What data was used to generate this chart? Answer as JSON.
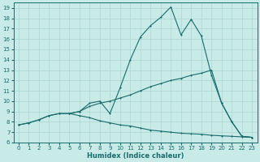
{
  "xlabel": "Humidex (Indice chaleur)",
  "bg_color": "#c8ebe8",
  "line_color": "#1a6b6b",
  "grid_color": "#b0d8d4",
  "xlim": [
    -0.5,
    23.5
  ],
  "ylim": [
    6,
    19.5
  ],
  "xticks": [
    0,
    1,
    2,
    3,
    4,
    5,
    6,
    7,
    8,
    9,
    10,
    11,
    12,
    13,
    14,
    15,
    16,
    17,
    18,
    19,
    20,
    21,
    22,
    23
  ],
  "yticks": [
    6,
    7,
    8,
    9,
    10,
    11,
    12,
    13,
    14,
    15,
    16,
    17,
    18,
    19
  ],
  "line1_x": [
    0,
    1,
    2,
    3,
    4,
    5,
    6,
    7,
    8,
    9,
    10,
    11,
    12,
    13,
    14,
    15,
    16,
    17,
    18,
    19,
    20,
    21,
    22,
    23
  ],
  "line1_y": [
    7.7,
    7.9,
    8.2,
    8.6,
    8.8,
    8.8,
    8.6,
    8.4,
    8.1,
    7.9,
    7.7,
    7.6,
    7.4,
    7.2,
    7.1,
    7.0,
    6.9,
    6.85,
    6.8,
    6.7,
    6.65,
    6.6,
    6.55,
    6.5
  ],
  "line2_x": [
    0,
    1,
    2,
    3,
    4,
    5,
    6,
    7,
    8,
    9,
    10,
    11,
    12,
    13,
    14,
    15,
    16,
    17,
    18,
    19,
    20,
    21,
    22,
    23
  ],
  "line2_y": [
    7.7,
    7.9,
    8.2,
    8.6,
    8.8,
    8.8,
    9.0,
    9.5,
    9.8,
    10.0,
    10.3,
    10.6,
    11.0,
    11.4,
    11.7,
    12.0,
    12.2,
    12.5,
    12.7,
    13.0,
    9.8,
    8.0,
    6.6,
    6.5
  ],
  "line3_x": [
    5,
    6,
    7,
    8,
    9,
    10,
    11,
    12,
    13,
    14,
    15,
    16,
    17,
    18,
    19,
    20,
    21,
    22,
    23
  ],
  "line3_y": [
    8.8,
    9.0,
    9.8,
    10.0,
    8.8,
    11.3,
    14.0,
    16.2,
    17.3,
    18.1,
    19.1,
    16.4,
    17.9,
    16.3,
    12.5,
    9.8,
    8.0,
    6.6,
    6.5
  ]
}
